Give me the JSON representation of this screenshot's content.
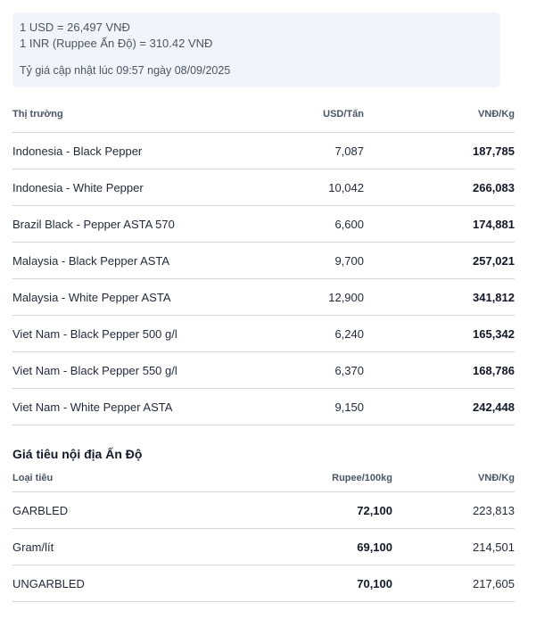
{
  "exchange": {
    "usd_line": "1 USD = 26,497 VNĐ",
    "inr_line": "1 INR (Ruppee Ấn Độ) = 310.42 VNĐ",
    "updated": "Tỷ giá cập nhật lúc 09:57 ngày 08/09/2025"
  },
  "world_table": {
    "headers": [
      "Thị trường",
      "USD/Tấn",
      "VNĐ/Kg"
    ],
    "rows": [
      [
        "Indonesia - Black Pepper",
        "7,087",
        "187,785"
      ],
      [
        "Indonesia - White Pepper",
        "10,042",
        "266,083"
      ],
      [
        "Brazil Black - Pepper ASTA 570",
        "6,600",
        "174,881"
      ],
      [
        "Malaysia - Black Pepper ASTA",
        "9,700",
        "257,021"
      ],
      [
        "Malaysia - White Pepper ASTA",
        "12,900",
        "341,812"
      ],
      [
        "Viet Nam - Black Pepper 500 g/l",
        "6,240",
        "165,342"
      ],
      [
        "Viet Nam - Black Pepper 550 g/l",
        "6,370",
        "168,786"
      ],
      [
        "Viet Nam - White Pepper ASTA",
        "9,150",
        "242,448"
      ]
    ]
  },
  "india_section": {
    "title": "Giá tiêu nội địa Ấn Độ",
    "headers": [
      "Loại tiêu",
      "Rupee/100kg",
      "VNĐ/Kg"
    ],
    "rows": [
      [
        "GARBLED",
        "72,100",
        "223,813"
      ],
      [
        "Gram/lít",
        "69,100",
        "214,501"
      ],
      [
        "UNGARBLED",
        "70,100",
        "217,605"
      ]
    ]
  }
}
